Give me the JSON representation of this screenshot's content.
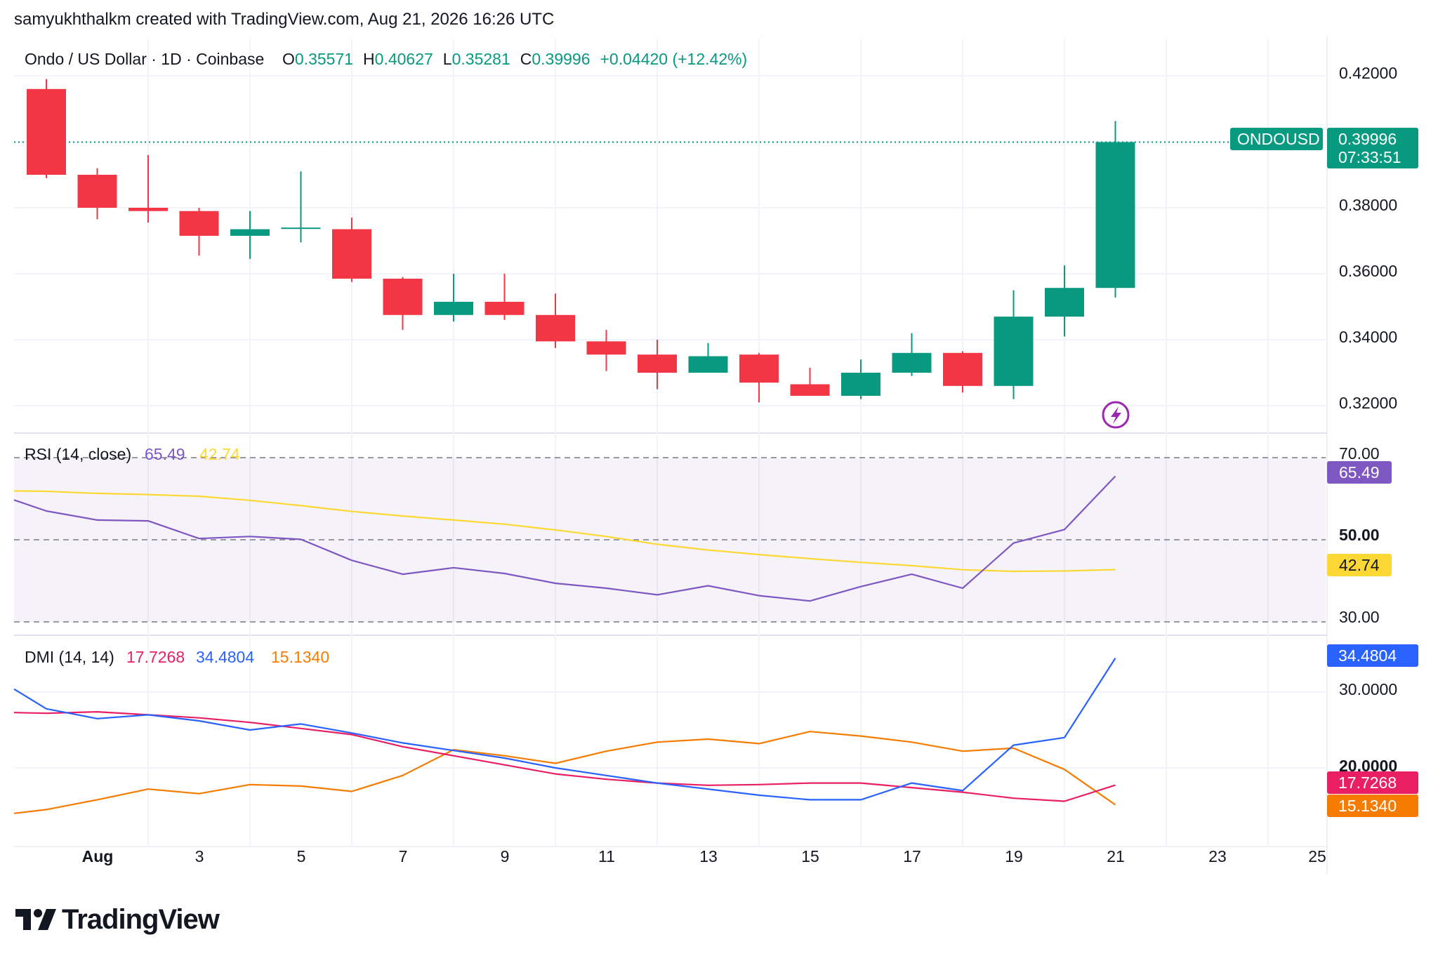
{
  "caption": "samyukhthalkm created with TradingView.com, Aug 21, 2026 16:26 UTC",
  "brand": {
    "logo_text": "TradingView"
  },
  "colors": {
    "up": "#089981",
    "down": "#f23645",
    "rsi": "#7e57c2",
    "rsi_ma": "#fdd835",
    "dmi_plus": "#2962ff",
    "dmi_minus": "#e91e63",
    "adx": "#f57c00",
    "grid": "#f0f3fa"
  },
  "price_panel": {
    "symbol_label": "Ondo / US Dollar · 1D · Coinbase",
    "open_key": "O",
    "open_val": "0.35571",
    "high_key": "H",
    "high_val": "0.40627",
    "low_key": "L",
    "low_val": "0.35281",
    "close_key": "C",
    "close_val": "0.39996",
    "change": "+0.04420 (+12.42%)",
    "ticker_tag": "ONDOUSD",
    "last_price": "0.39996",
    "countdown": "07:33:51",
    "y_ticks": [
      "0.42000",
      "0.38000",
      "0.36000",
      "0.34000",
      "0.32000"
    ]
  },
  "rsi_panel": {
    "title": "RSI (14, close)",
    "rsi_value": "65.49",
    "ma_value": "42.74",
    "y_ticks": [
      "70.00",
      "50.00",
      "30.00"
    ]
  },
  "dmi_panel": {
    "title": "DMI (14, 14)",
    "minus_value": "17.7268",
    "plus_value": "34.4804",
    "adx_value": "15.1340",
    "y_ticks": [
      "30.0000",
      "20.0000"
    ]
  },
  "x_axis": {
    "ticks": [
      "Aug",
      "3",
      "5",
      "7",
      "9",
      "11",
      "13",
      "15",
      "17",
      "19",
      "21",
      "23",
      "25"
    ]
  },
  "chart_data": [
    {
      "type": "candlestick",
      "title": "Ondo / US Dollar · 1D · Coinbase",
      "x": [
        "Jul 31",
        "Aug 1",
        "Aug 2",
        "Aug 3",
        "Aug 4",
        "Aug 5",
        "Aug 6",
        "Aug 7",
        "Aug 8",
        "Aug 9",
        "Aug 10",
        "Aug 11",
        "Aug 12",
        "Aug 13",
        "Aug 14",
        "Aug 15",
        "Aug 16",
        "Aug 17",
        "Aug 18",
        "Aug 19",
        "Aug 20",
        "Aug 21"
      ],
      "open": [
        0.416,
        0.39,
        0.38,
        0.379,
        0.3715,
        0.374,
        0.3735,
        0.3585,
        0.3475,
        0.3515,
        0.3475,
        0.3395,
        0.3355,
        0.33,
        0.3355,
        0.3265,
        0.323,
        0.33,
        0.336,
        0.326,
        0.347,
        0.3557
      ],
      "high": [
        0.419,
        0.392,
        0.396,
        0.38,
        0.379,
        0.391,
        0.377,
        0.359,
        0.36,
        0.36,
        0.354,
        0.343,
        0.34,
        0.339,
        0.336,
        0.3315,
        0.334,
        0.342,
        0.3365,
        0.355,
        0.3625,
        0.4063
      ],
      "low": [
        0.389,
        0.3765,
        0.3755,
        0.3655,
        0.3645,
        0.3695,
        0.3575,
        0.343,
        0.3455,
        0.346,
        0.3375,
        0.3305,
        0.325,
        0.33,
        0.321,
        0.3235,
        0.322,
        0.329,
        0.324,
        0.322,
        0.341,
        0.3528
      ],
      "close": [
        0.39,
        0.38,
        0.379,
        0.3715,
        0.3735,
        0.374,
        0.3585,
        0.3475,
        0.3515,
        0.3475,
        0.3395,
        0.3355,
        0.33,
        0.335,
        0.327,
        0.323,
        0.33,
        0.336,
        0.326,
        0.347,
        0.3557,
        0.3999
      ],
      "ylim": [
        0.3115,
        0.4235
      ]
    },
    {
      "type": "line",
      "title": "RSI (14, close)",
      "x": [
        "Jul 31",
        "Aug 1",
        "Aug 2",
        "Aug 3",
        "Aug 4",
        "Aug 5",
        "Aug 6",
        "Aug 7",
        "Aug 8",
        "Aug 9",
        "Aug 10",
        "Aug 11",
        "Aug 12",
        "Aug 13",
        "Aug 14",
        "Aug 15",
        "Aug 16",
        "Aug 17",
        "Aug 18",
        "Aug 19",
        "Aug 20",
        "Aug 21"
      ],
      "series": [
        {
          "name": "RSI",
          "values": [
            57.0,
            54.8,
            54.6,
            50.3,
            50.8,
            50.1,
            45.0,
            41.6,
            43.2,
            41.8,
            39.4,
            38.2,
            36.6,
            38.8,
            36.4,
            35.1,
            38.6,
            41.6,
            38.2,
            49.2,
            52.5,
            65.49
          ]
        },
        {
          "name": "MA",
          "values": [
            61.8,
            61.3,
            61.0,
            60.6,
            59.6,
            58.3,
            56.9,
            55.8,
            54.8,
            53.8,
            52.4,
            50.8,
            48.9,
            47.5,
            46.4,
            45.4,
            44.5,
            43.7,
            42.7,
            42.3,
            42.4,
            42.74
          ]
        }
      ],
      "ylim": [
        29,
        71
      ]
    },
    {
      "type": "line",
      "title": "DMI (14, 14)",
      "x": [
        "Jul 31",
        "Aug 1",
        "Aug 2",
        "Aug 3",
        "Aug 4",
        "Aug 5",
        "Aug 6",
        "Aug 7",
        "Aug 8",
        "Aug 9",
        "Aug 10",
        "Aug 11",
        "Aug 12",
        "Aug 13",
        "Aug 14",
        "Aug 15",
        "Aug 16",
        "Aug 17",
        "Aug 18",
        "Aug 19",
        "Aug 20",
        "Aug 21"
      ],
      "series": [
        {
          "name": "+DI",
          "values": [
            27.8,
            26.5,
            27.0,
            26.2,
            25.0,
            25.8,
            24.6,
            23.3,
            22.3,
            21.3,
            20.0,
            19.0,
            18.0,
            17.2,
            16.4,
            15.8,
            15.8,
            18.0,
            17.0,
            23.0,
            24.0,
            34.4804
          ]
        },
        {
          "name": "-DI",
          "values": [
            27.2,
            27.4,
            27.0,
            26.6,
            26.0,
            25.2,
            24.4,
            22.8,
            21.6,
            20.4,
            19.2,
            18.5,
            18.0,
            17.7,
            17.8,
            18.0,
            18.0,
            17.4,
            16.8,
            16.0,
            15.6,
            17.7268
          ]
        },
        {
          "name": "ADX",
          "values": [
            14.5,
            15.8,
            17.2,
            16.6,
            17.8,
            17.6,
            16.9,
            19.0,
            22.4,
            21.6,
            20.6,
            22.2,
            23.4,
            23.8,
            23.2,
            24.8,
            24.2,
            23.4,
            22.2,
            22.6,
            19.8,
            15.134
          ]
        }
      ],
      "ylim": [
        13,
        35.5
      ]
    }
  ]
}
